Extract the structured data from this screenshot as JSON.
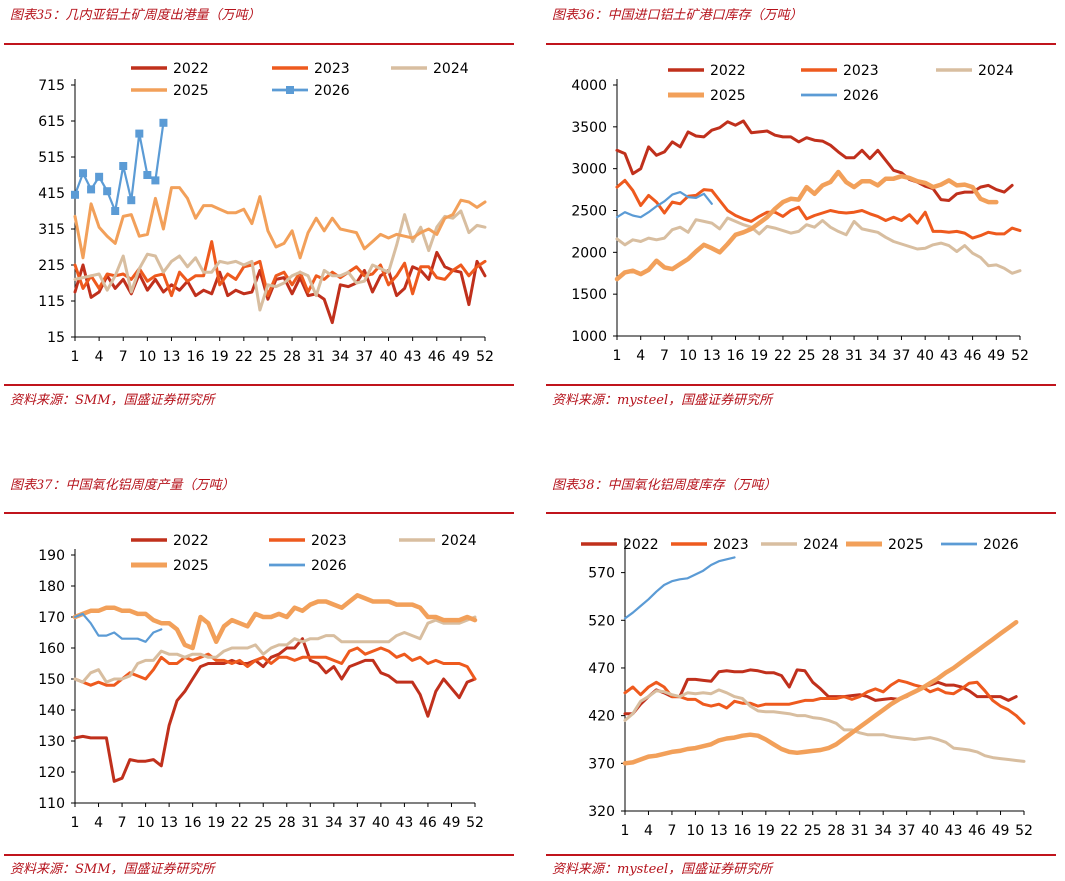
{
  "colors": {
    "c2022": "#c0301c",
    "c2023": "#ee5a1e",
    "c2024": "#d8bea0",
    "c2025": "#f2a05a",
    "c2026": "#5b9bd5",
    "rule": "#c0141c"
  },
  "panels": [
    {
      "title": "图表35：几内亚铝土矿周度出港量（万吨）",
      "source": "资料来源：SMM，国盛证券研究所"
    },
    {
      "title": "图表36：中国进口铝土矿港口库存（万吨）",
      "source": "资料来源：mysteel，国盛证券研究所"
    },
    {
      "title": "图表37：中国氧化铝周度产量（万吨）",
      "source": "资料来源：SMM，国盛证券研究所"
    },
    {
      "title": "图表38：中国氧化铝周度库存（万吨）",
      "source": "资料来源：mysteel，国盛证券研究所"
    }
  ],
  "chart_data": [
    {
      "type": "line",
      "yticks": [
        15,
        115,
        215,
        315,
        415,
        515,
        615,
        715
      ],
      "ylim": [
        15,
        715
      ],
      "xticks": [
        1,
        4,
        7,
        10,
        13,
        16,
        19,
        22,
        25,
        28,
        31,
        34,
        37,
        40,
        43,
        46,
        49,
        52
      ],
      "xlim": [
        1,
        52
      ],
      "legend_order": [
        "2022",
        "2023",
        "2024",
        "2025",
        "2026"
      ],
      "series": [
        {
          "name": "2022",
          "values": [
            140,
            215,
            125,
            140,
            185,
            150,
            175,
            135,
            190,
            145,
            175,
            140,
            160,
            145,
            170,
            130,
            145,
            135,
            195,
            130,
            145,
            135,
            140,
            200,
            120,
            175,
            180,
            135,
            180,
            130,
            135,
            120,
            55,
            160,
            155,
            165,
            200,
            140,
            185,
            200,
            130,
            150,
            210,
            200,
            175,
            250,
            210,
            200,
            195,
            105,
            225,
            185
          ]
        },
        {
          "name": "2023",
          "values": [
            215,
            150,
            185,
            150,
            190,
            185,
            190,
            175,
            205,
            170,
            185,
            190,
            130,
            195,
            170,
            185,
            185,
            280,
            160,
            190,
            175,
            210,
            215,
            225,
            130,
            185,
            195,
            160,
            195,
            140,
            185,
            175,
            195,
            180,
            195,
            210,
            185,
            190,
            215,
            160,
            185,
            220,
            135,
            210,
            210,
            180,
            175,
            200,
            215,
            185,
            210,
            225
          ]
        },
        {
          "name": "2024",
          "values": [
            175,
            180,
            185,
            190,
            145,
            185,
            240,
            140,
            205,
            245,
            240,
            195,
            225,
            240,
            210,
            235,
            195,
            195,
            225,
            220,
            225,
            215,
            225,
            90,
            160,
            155,
            165,
            185,
            195,
            185,
            130,
            200,
            185,
            185,
            195,
            165,
            170,
            215,
            205,
            195,
            270,
            355,
            280,
            320,
            255,
            320,
            350,
            345,
            365,
            305,
            325,
            320
          ]
        },
        {
          "name": "2025",
          "values": [
            350,
            235,
            385,
            320,
            295,
            275,
            350,
            355,
            295,
            300,
            400,
            315,
            430,
            430,
            400,
            345,
            380,
            380,
            370,
            360,
            360,
            370,
            330,
            405,
            310,
            265,
            275,
            310,
            235,
            305,
            345,
            310,
            345,
            315,
            310,
            305,
            260,
            280,
            300,
            290,
            300,
            295,
            290,
            305,
            315,
            300,
            345,
            355,
            395,
            390,
            375,
            390
          ]
        },
        {
          "name": "2026",
          "values": [
            410,
            470,
            425,
            460,
            420,
            365,
            490,
            395,
            580,
            465,
            450,
            610
          ]
        }
      ]
    },
    {
      "type": "line",
      "yticks": [
        1000,
        1500,
        2000,
        2500,
        3000,
        3500,
        4000
      ],
      "ylim": [
        1000,
        4000
      ],
      "xticks": [
        1,
        4,
        7,
        10,
        13,
        16,
        19,
        22,
        25,
        28,
        31,
        34,
        37,
        40,
        43,
        46,
        49,
        52
      ],
      "xlim": [
        1,
        52
      ],
      "legend_order": [
        "2022",
        "2023",
        "2024",
        "2025",
        "2026"
      ],
      "series": [
        {
          "name": "2022",
          "values": [
            3220,
            3180,
            2940,
            3000,
            3260,
            3160,
            3200,
            3320,
            3260,
            3440,
            3390,
            3380,
            3460,
            3490,
            3560,
            3520,
            3570,
            3430,
            3440,
            3450,
            3400,
            3380,
            3380,
            3320,
            3370,
            3340,
            3330,
            3280,
            3200,
            3130,
            3130,
            3220,
            3120,
            3220,
            3100,
            2980,
            2950,
            2870,
            2840,
            2790,
            2760,
            2630,
            2620,
            2700,
            2720,
            2720,
            2780,
            2800,
            2750,
            2720,
            2800
          ]
        },
        {
          "name": "2023",
          "values": [
            2780,
            2860,
            2740,
            2560,
            2680,
            2600,
            2470,
            2600,
            2580,
            2670,
            2680,
            2750,
            2740,
            2620,
            2500,
            2440,
            2400,
            2370,
            2430,
            2480,
            2480,
            2430,
            2500,
            2540,
            2400,
            2440,
            2470,
            2500,
            2480,
            2470,
            2480,
            2500,
            2460,
            2430,
            2380,
            2420,
            2380,
            2450,
            2350,
            2480,
            2250,
            2250,
            2240,
            2250,
            2230,
            2170,
            2200,
            2240,
            2220,
            2220,
            2290,
            2260
          ]
        },
        {
          "name": "2024",
          "values": [
            2160,
            2090,
            2150,
            2130,
            2170,
            2150,
            2170,
            2270,
            2300,
            2240,
            2390,
            2370,
            2350,
            2280,
            2410,
            2370,
            2330,
            2300,
            2220,
            2310,
            2290,
            2260,
            2230,
            2250,
            2330,
            2300,
            2380,
            2300,
            2250,
            2210,
            2370,
            2280,
            2260,
            2240,
            2180,
            2130,
            2100,
            2070,
            2040,
            2050,
            2090,
            2110,
            2080,
            2010,
            2080,
            1990,
            1940,
            1840,
            1850,
            1810,
            1750,
            1780
          ]
        },
        {
          "name": "2025",
          "values": [
            1680,
            1760,
            1780,
            1740,
            1790,
            1900,
            1820,
            1800,
            1860,
            1920,
            2010,
            2090,
            2050,
            2000,
            2100,
            2210,
            2240,
            2280,
            2350,
            2420,
            2520,
            2600,
            2640,
            2630,
            2780,
            2700,
            2800,
            2840,
            2960,
            2840,
            2780,
            2850,
            2850,
            2800,
            2880,
            2880,
            2910,
            2890,
            2850,
            2830,
            2780,
            2810,
            2860,
            2800,
            2810,
            2780,
            2640,
            2600,
            2600
          ]
        },
        {
          "name": "2026",
          "values": [
            2420,
            2480,
            2440,
            2420,
            2480,
            2550,
            2610,
            2690,
            2720,
            2660,
            2650,
            2700,
            2580
          ]
        }
      ]
    },
    {
      "type": "line",
      "yticks": [
        110,
        120,
        130,
        140,
        150,
        160,
        170,
        180,
        190
      ],
      "ylim": [
        110,
        190
      ],
      "xticks": [
        1,
        4,
        7,
        10,
        13,
        16,
        19,
        22,
        25,
        28,
        31,
        34,
        37,
        40,
        43,
        46,
        49,
        52
      ],
      "xlim": [
        1,
        52
      ],
      "legend_order": [
        "2022",
        "2023",
        "2024",
        "2025",
        "2026"
      ],
      "series": [
        {
          "name": "2022",
          "values": [
            131,
            131.5,
            131,
            131,
            131,
            117,
            118,
            124,
            123.5,
            123.5,
            124,
            122,
            135,
            143,
            146,
            150,
            154,
            155,
            155,
            155,
            156,
            155,
            155,
            156,
            154,
            157,
            158,
            160,
            160,
            163,
            156,
            155,
            152,
            154,
            150,
            154,
            155,
            156,
            156,
            152,
            151,
            149,
            149,
            149,
            145,
            138,
            146,
            150,
            147,
            144,
            149,
            150
          ]
        },
        {
          "name": "2023",
          "values": [
            150,
            149,
            148,
            149,
            148,
            148,
            150,
            152,
            151,
            150,
            153,
            157,
            155,
            155,
            157,
            156,
            157,
            158,
            156,
            156,
            155,
            156,
            154,
            156,
            157,
            155,
            157,
            157,
            156,
            157,
            157,
            157,
            157,
            156,
            155,
            159,
            160,
            158,
            159,
            160,
            159,
            157,
            158,
            156,
            157,
            155,
            156,
            155,
            155,
            155,
            154,
            150
          ]
        },
        {
          "name": "2024",
          "values": [
            150,
            149,
            152,
            153,
            149,
            150,
            150,
            151,
            155,
            156,
            156,
            159,
            158,
            158,
            157,
            158,
            158,
            157,
            157,
            159,
            160,
            160,
            160,
            161,
            158,
            160,
            161,
            161,
            163,
            162,
            163,
            163,
            164,
            164,
            162,
            162,
            162,
            162,
            162,
            162,
            162,
            164,
            165,
            164,
            163,
            168,
            169,
            168,
            168,
            168,
            169,
            170
          ]
        },
        {
          "name": "2025",
          "values": [
            170,
            171,
            172,
            172,
            173,
            173,
            172,
            172,
            171,
            171,
            169,
            168,
            168,
            166,
            161,
            160,
            170,
            168,
            162,
            167,
            169,
            168,
            167,
            171,
            170,
            170,
            171,
            170,
            173,
            172,
            174,
            175,
            175,
            174,
            173,
            175,
            177,
            176,
            175,
            175,
            175,
            174,
            174,
            174,
            173,
            170,
            170,
            169,
            169,
            169,
            170,
            169
          ]
        },
        {
          "name": "2026",
          "values": [
            170,
            171,
            168,
            164,
            164,
            165,
            163,
            163,
            163,
            162,
            165,
            166
          ]
        }
      ]
    },
    {
      "type": "line",
      "yticks": [
        320,
        370,
        420,
        470,
        520,
        570
      ],
      "ylim": [
        320,
        600
      ],
      "xticks": [
        1,
        4,
        7,
        10,
        13,
        16,
        19,
        22,
        25,
        28,
        31,
        34,
        37,
        40,
        43,
        46,
        49,
        52
      ],
      "xlim": [
        1,
        52
      ],
      "legend_order": [
        "2022",
        "2023",
        "2024",
        "2025",
        "2026"
      ],
      "series": [
        {
          "name": "2022",
          "values": [
            422,
            422,
            432,
            440,
            447,
            444,
            440,
            440,
            458,
            458,
            457,
            456,
            466,
            467,
            466,
            466,
            468,
            467,
            465,
            465,
            462,
            450,
            468,
            467,
            455,
            448,
            440,
            440,
            440,
            441,
            442,
            440,
            436,
            437,
            438,
            437,
            440,
            445,
            450,
            452,
            455,
            452,
            452,
            450,
            446,
            440,
            440,
            440,
            440,
            436,
            440
          ]
        },
        {
          "name": "2023",
          "values": [
            444,
            450,
            442,
            450,
            455,
            450,
            440,
            440,
            437,
            437,
            432,
            430,
            432,
            428,
            435,
            433,
            433,
            430,
            432,
            432,
            432,
            432,
            434,
            436,
            436,
            438,
            438,
            438,
            440,
            437,
            440,
            445,
            448,
            445,
            452,
            457,
            455,
            452,
            450,
            445,
            448,
            444,
            443,
            448,
            454,
            455,
            446,
            436,
            430,
            426,
            420,
            412
          ]
        },
        {
          "name": "2024",
          "values": [
            415,
            422,
            435,
            440,
            446,
            445,
            442,
            440,
            444,
            443,
            444,
            443,
            447,
            444,
            440,
            438,
            430,
            425,
            424,
            424,
            423,
            422,
            420,
            420,
            418,
            417,
            415,
            412,
            405,
            405,
            402,
            400,
            400,
            400,
            398,
            397,
            396,
            395,
            396,
            397,
            395,
            392,
            386,
            385,
            384,
            382,
            378,
            376,
            375,
            374,
            373,
            372
          ]
        },
        {
          "name": "2025",
          "values": [
            370,
            371,
            374,
            377,
            378,
            380,
            382,
            383,
            385,
            386,
            388,
            390,
            394,
            396,
            397,
            399,
            400,
            399,
            395,
            390,
            385,
            382,
            381,
            382,
            383,
            384,
            386,
            390,
            396,
            402,
            408,
            414,
            420,
            426,
            432,
            437,
            441,
            445,
            449,
            454,
            459,
            465,
            470,
            476,
            482,
            488,
            494,
            500,
            506,
            512,
            518
          ]
        },
        {
          "name": "2026",
          "values": [
            522,
            528,
            535,
            542,
            550,
            557,
            561,
            563,
            564,
            568,
            572,
            578,
            582,
            584,
            586
          ]
        }
      ]
    }
  ]
}
